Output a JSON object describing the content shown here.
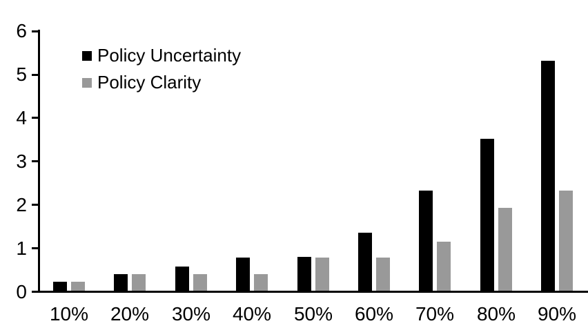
{
  "chart_data": {
    "type": "bar",
    "title": "",
    "xlabel": "",
    "ylabel": "",
    "categories": [
      "10%",
      "20%",
      "30%",
      "40%",
      "50%",
      "60%",
      "70%",
      "80%",
      "90%"
    ],
    "series": [
      {
        "name": "Policy Uncertainty",
        "color": "#000000",
        "values": [
          0.2,
          0.38,
          0.56,
          0.76,
          0.78,
          1.33,
          2.3,
          3.5,
          5.3
        ]
      },
      {
        "name": "Policy Clarity",
        "color": "#999999",
        "values": [
          0.2,
          0.38,
          0.38,
          0.38,
          0.77,
          0.77,
          1.13,
          1.9,
          2.3
        ]
      }
    ],
    "ylim": [
      0,
      6
    ],
    "yticks": [
      0,
      1,
      2,
      3,
      4,
      5,
      6
    ],
    "grid": false,
    "legend_position": "top-left",
    "axis_color": "#000000"
  }
}
